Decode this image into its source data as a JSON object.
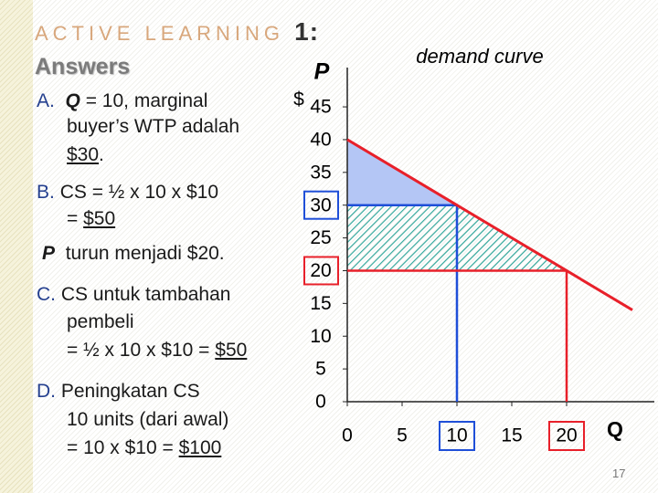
{
  "slide": {
    "title": "ACTIVE LEARNING",
    "title_number": "1:",
    "subtitle": "Answers",
    "a": {
      "label": "A.",
      "q": "Q",
      "line1": "= 10, marginal",
      "line2": "buyer’s WTP adalah",
      "answer": "$30",
      "end": "."
    },
    "b": {
      "label": "B.",
      "line1": "CS = ½ x 10 x $10",
      "line2": "=",
      "answer": "$50"
    },
    "p_note": {
      "symbol": "P",
      "text": "turun menjadi $20."
    },
    "c": {
      "label": "C.",
      "line1": "CS untuk tambahan",
      "line2": "pembeli",
      "line3": "= ½ x 10 x $10 =",
      "answer": "$50"
    },
    "d": {
      "label": "D.",
      "line1": "Peningkatan CS",
      "line2": "10 units (dari awal)",
      "line3": "= 10 x $10 =",
      "answer": "$100"
    },
    "page_number": "17"
  },
  "chart_data": {
    "type": "line",
    "x_label": "Q",
    "y_label": "P",
    "y_unit": "$",
    "x": [
      0,
      10,
      20,
      26
    ],
    "series": [
      {
        "name": "demand curve",
        "color": "#e8202a",
        "values": [
          40,
          30,
          20,
          14
        ]
      }
    ],
    "price_levels": [
      {
        "price": 30,
        "quantity": 10,
        "color": "#1f4fd8"
      },
      {
        "price": 20,
        "quantity": 20,
        "color": "#e8202a"
      }
    ],
    "cs_color": "#b4c6f5",
    "hatch_color": "#2aa59a",
    "xlim": [
      0,
      28
    ],
    "ylim": [
      0,
      51
    ],
    "xticks": [
      0,
      5,
      10,
      15,
      20
    ],
    "yticks": [
      0,
      5,
      10,
      15,
      20,
      25,
      30,
      35,
      40,
      45
    ]
  }
}
